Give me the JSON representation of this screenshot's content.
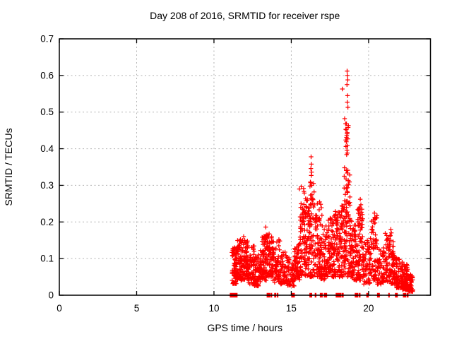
{
  "figure": {
    "background": "#ffffff",
    "text_color": "#000000",
    "border_color": "#000000"
  },
  "chart_data": {
    "type": "scatter",
    "title": "Day 208 of 2016, SRMTID for receiver rspe",
    "xlabel": "GPS time / hours",
    "ylabel": "SRMTID / TECUs",
    "xlim": [
      0,
      24
    ],
    "ylim": [
      0,
      0.7
    ],
    "xticks": [
      0,
      5,
      10,
      15,
      20
    ],
    "xtick_labels": [
      "0",
      "5",
      "10",
      "15",
      "20"
    ],
    "yticks": [
      0,
      0.1,
      0.2,
      0.3,
      0.4,
      0.5,
      0.6,
      0.7
    ],
    "ytick_labels": [
      "0",
      "0.1",
      "0.2",
      "0.3",
      "0.4",
      "0.5",
      "0.6",
      "0.7"
    ],
    "grid": true,
    "grid_style": "dashed",
    "grid_color": "#b3b3b3",
    "legend": "none",
    "marker": "plus",
    "marker_color": "#ff0000",
    "data_x_range": [
      11.15,
      22.85
    ],
    "seed": 20816,
    "band_exponent": 1.35,
    "band_segments": [
      {
        "x0": 11.15,
        "x1": 11.45,
        "n": 60,
        "y0": 0.03,
        "y1": 0.13
      },
      {
        "x0": 11.45,
        "x1": 11.8,
        "n": 70,
        "y0": 0.04,
        "y1": 0.155
      },
      {
        "x0": 11.8,
        "x1": 12.2,
        "n": 70,
        "y0": 0.04,
        "y1": 0.15
      },
      {
        "x0": 12.2,
        "x1": 12.6,
        "n": 65,
        "y0": 0.03,
        "y1": 0.135
      },
      {
        "x0": 12.6,
        "x1": 13.0,
        "n": 60,
        "y0": 0.025,
        "y1": 0.11
      },
      {
        "x0": 13.0,
        "x1": 13.4,
        "n": 70,
        "y0": 0.04,
        "y1": 0.165
      },
      {
        "x0": 13.4,
        "x1": 13.8,
        "n": 70,
        "y0": 0.05,
        "y1": 0.16
      },
      {
        "x0": 13.8,
        "x1": 14.3,
        "n": 65,
        "y0": 0.035,
        "y1": 0.15
      },
      {
        "x0": 14.3,
        "x1": 14.75,
        "n": 55,
        "y0": 0.03,
        "y1": 0.12
      },
      {
        "x0": 14.75,
        "x1": 15.2,
        "n": 50,
        "y0": 0.025,
        "y1": 0.105
      },
      {
        "x0": 15.2,
        "x1": 15.55,
        "n": 55,
        "y0": 0.04,
        "y1": 0.14
      },
      {
        "x0": 15.55,
        "x1": 16.0,
        "n": 70,
        "y0": 0.05,
        "y1": 0.24
      },
      {
        "x0": 16.0,
        "x1": 16.5,
        "n": 80,
        "y0": 0.05,
        "y1": 0.27
      },
      {
        "x0": 16.5,
        "x1": 16.9,
        "n": 70,
        "y0": 0.05,
        "y1": 0.22
      },
      {
        "x0": 16.9,
        "x1": 17.3,
        "n": 65,
        "y0": 0.04,
        "y1": 0.19
      },
      {
        "x0": 17.3,
        "x1": 17.7,
        "n": 65,
        "y0": 0.05,
        "y1": 0.21
      },
      {
        "x0": 17.7,
        "x1": 18.1,
        "n": 70,
        "y0": 0.05,
        "y1": 0.22
      },
      {
        "x0": 18.1,
        "x1": 18.45,
        "n": 65,
        "y0": 0.05,
        "y1": 0.25
      },
      {
        "x0": 18.45,
        "x1": 18.9,
        "n": 75,
        "y0": 0.05,
        "y1": 0.26
      },
      {
        "x0": 18.9,
        "x1": 19.3,
        "n": 70,
        "y0": 0.04,
        "y1": 0.2
      },
      {
        "x0": 19.3,
        "x1": 19.65,
        "n": 60,
        "y0": 0.04,
        "y1": 0.25
      },
      {
        "x0": 19.65,
        "x1": 20.1,
        "n": 60,
        "y0": 0.03,
        "y1": 0.15
      },
      {
        "x0": 20.1,
        "x1": 20.55,
        "n": 55,
        "y0": 0.04,
        "y1": 0.22
      },
      {
        "x0": 20.55,
        "x1": 21.0,
        "n": 55,
        "y0": 0.03,
        "y1": 0.13
      },
      {
        "x0": 21.0,
        "x1": 21.45,
        "n": 55,
        "y0": 0.035,
        "y1": 0.17
      },
      {
        "x0": 21.45,
        "x1": 21.8,
        "n": 55,
        "y0": 0.03,
        "y1": 0.12
      },
      {
        "x0": 21.8,
        "x1": 22.2,
        "n": 60,
        "y0": 0.02,
        "y1": 0.1
      },
      {
        "x0": 22.2,
        "x1": 22.55,
        "n": 65,
        "y0": 0.015,
        "y1": 0.085
      },
      {
        "x0": 22.55,
        "x1": 22.85,
        "n": 50,
        "y0": 0.01,
        "y1": 0.06
      }
    ],
    "clusters": [
      {
        "x0": 15.52,
        "x1": 15.85,
        "n": 14,
        "y0": 0.2,
        "y1": 0.305
      },
      {
        "x0": 15.9,
        "x1": 16.18,
        "n": 12,
        "y0": 0.2,
        "y1": 0.265
      },
      {
        "x0": 16.2,
        "x1": 16.48,
        "n": 14,
        "y0": 0.23,
        "y1": 0.31
      },
      {
        "x0": 16.6,
        "x1": 17.05,
        "n": 9,
        "y0": 0.19,
        "y1": 0.255
      },
      {
        "x0": 17.5,
        "x1": 18.3,
        "n": 10,
        "y0": 0.17,
        "y1": 0.235
      },
      {
        "x0": 13.2,
        "x1": 13.6,
        "n": 6,
        "y0": 0.14,
        "y1": 0.175
      },
      {
        "x0": 18.42,
        "x1": 18.8,
        "n": 24,
        "y0": 0.245,
        "y1": 0.35
      },
      {
        "x0": 18.5,
        "x1": 18.72,
        "n": 8,
        "y0": 0.38,
        "y1": 0.47
      },
      {
        "x0": 19.3,
        "x1": 19.6,
        "n": 10,
        "y0": 0.17,
        "y1": 0.245
      },
      {
        "x0": 20.27,
        "x1": 20.5,
        "n": 9,
        "y0": 0.13,
        "y1": 0.215
      },
      {
        "x0": 21.33,
        "x1": 21.6,
        "n": 9,
        "y0": 0.1,
        "y1": 0.168
      }
    ],
    "peak_points": [
      [
        16.28,
        0.378
      ],
      [
        16.3,
        0.358
      ],
      [
        16.27,
        0.346
      ],
      [
        16.32,
        0.336
      ],
      [
        16.29,
        0.327
      ],
      [
        16.25,
        0.307
      ],
      [
        18.61,
        0.612
      ],
      [
        18.63,
        0.6
      ],
      [
        18.65,
        0.588
      ],
      [
        18.6,
        0.575
      ],
      [
        18.3,
        0.563
      ],
      [
        18.64,
        0.545
      ],
      [
        18.62,
        0.527
      ],
      [
        18.66,
        0.513
      ],
      [
        18.45,
        0.482
      ],
      [
        18.57,
        0.468
      ],
      [
        18.68,
        0.458
      ],
      [
        18.55,
        0.452
      ],
      [
        18.62,
        0.444
      ],
      [
        18.59,
        0.436
      ],
      [
        18.66,
        0.427
      ],
      [
        18.56,
        0.419
      ],
      [
        18.63,
        0.408
      ],
      [
        18.6,
        0.396
      ],
      [
        18.58,
        0.384
      ],
      [
        13.35,
        0.186
      ],
      [
        11.92,
        0.16
      ],
      [
        14.2,
        0.152
      ],
      [
        19.46,
        0.262
      ],
      [
        19.5,
        0.247
      ],
      [
        19.43,
        0.236
      ],
      [
        20.38,
        0.224
      ],
      [
        20.42,
        0.208
      ],
      [
        21.44,
        0.18
      ],
      [
        21.47,
        0.17
      ]
    ],
    "zero_marker_ranges": [
      {
        "x0": 11.05,
        "x1": 11.5,
        "n": 30
      },
      {
        "x0": 13.43,
        "x1": 13.5,
        "n": 4
      },
      {
        "x0": 13.55,
        "x1": 13.62,
        "n": 4
      },
      {
        "x0": 13.7,
        "x1": 13.73,
        "n": 2
      },
      {
        "x0": 13.93,
        "x1": 14.0,
        "n": 4
      },
      {
        "x0": 14.1,
        "x1": 14.13,
        "n": 2
      },
      {
        "x0": 15.03,
        "x1": 15.2,
        "n": 8
      },
      {
        "x0": 16.2,
        "x1": 16.32,
        "n": 5
      },
      {
        "x0": 16.55,
        "x1": 16.6,
        "n": 3
      },
      {
        "x0": 16.88,
        "x1": 17.0,
        "n": 5
      },
      {
        "x0": 17.13,
        "x1": 17.28,
        "n": 5
      },
      {
        "x0": 17.9,
        "x1": 18.0,
        "n": 5
      },
      {
        "x0": 18.05,
        "x1": 18.22,
        "n": 7
      },
      {
        "x0": 18.3,
        "x1": 18.36,
        "n": 3
      },
      {
        "x0": 19.13,
        "x1": 19.3,
        "n": 8
      },
      {
        "x0": 19.4,
        "x1": 19.45,
        "n": 3
      },
      {
        "x0": 19.88,
        "x1": 19.98,
        "n": 5
      },
      {
        "x0": 20.58,
        "x1": 20.7,
        "n": 6
      },
      {
        "x0": 21.3,
        "x1": 21.34,
        "n": 2
      },
      {
        "x0": 21.73,
        "x1": 21.86,
        "n": 5
      },
      {
        "x0": 22.24,
        "x1": 22.4,
        "n": 7
      },
      {
        "x0": 22.48,
        "x1": 22.55,
        "n": 3
      }
    ]
  }
}
